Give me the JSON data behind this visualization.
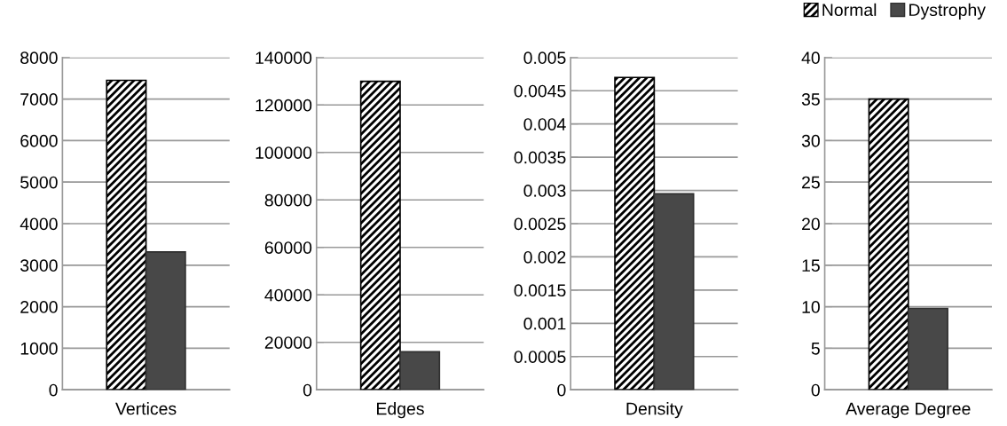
{
  "chart_data": [
    {
      "type": "bar",
      "categories": [
        "Vertices"
      ],
      "ylim": [
        0,
        8000
      ],
      "yticks": [
        0,
        1000,
        2000,
        3000,
        4000,
        5000,
        6000,
        7000,
        8000
      ],
      "grid": "y",
      "series": [
        {
          "color": "#000000",
          "values": [
            7450
          ]
        },
        {
          "color": "#484848",
          "values": [
            3320
          ]
        }
      ]
    },
    {
      "type": "bar",
      "categories": [
        "Edges"
      ],
      "ylim": [
        0,
        140000
      ],
      "yticks": [
        0,
        20000,
        40000,
        60000,
        80000,
        100000,
        120000,
        140000
      ],
      "grid": "y",
      "series": [
        {
          "color": "#000000",
          "values": [
            130000
          ]
        },
        {
          "color": "#484848",
          "values": [
            16000
          ]
        }
      ]
    },
    {
      "type": "bar",
      "categories": [
        "Density"
      ],
      "ylim": [
        0,
        0.005
      ],
      "yticks": [
        0,
        0.0005,
        0.001,
        0.0015,
        0.002,
        0.0025,
        0.003,
        0.0035,
        0.004,
        0.0045,
        0.005
      ],
      "grid": "y",
      "series": [
        {
          "color": "#000000",
          "values": [
            0.0047
          ]
        },
        {
          "color": "#484848",
          "values": [
            0.00295
          ]
        }
      ]
    },
    {
      "type": "bar",
      "categories": [
        "Average Degree"
      ],
      "ylim": [
        0,
        40
      ],
      "yticks": [
        0,
        5,
        10,
        15,
        20,
        25,
        30,
        35,
        40
      ],
      "grid": "y",
      "legend": "top",
      "series": [
        {
          "name": "Normal",
          "color": "#000000",
          "values": [
            35
          ]
        },
        {
          "name": "Dystrophy",
          "color": "#484848",
          "values": [
            9.8
          ]
        }
      ]
    }
  ]
}
